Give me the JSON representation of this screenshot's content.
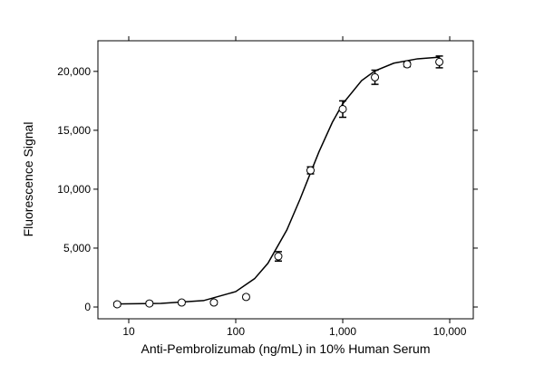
{
  "chart_data": {
    "type": "scatter",
    "x_label": "Anti-Pembrolizumab (ng/mL) in 10% Human Serum",
    "y_label": "Fluorescence Signal",
    "x_scale": "log",
    "xlim": [
      5.15,
      16600
    ],
    "ylim": [
      -1000,
      22600
    ],
    "xticks": [
      10,
      100,
      {
        "value": 1000,
        "label": "1,000"
      },
      {
        "value": 10000,
        "label": "10,000"
      }
    ],
    "yticks": [
      0,
      {
        "value": 5000,
        "label": "5,000"
      },
      {
        "value": 10000,
        "label": "10,000"
      },
      {
        "value": 15000,
        "label": "15,000"
      },
      {
        "value": 20000,
        "label": "20,000"
      }
    ],
    "color": "#000000",
    "points": {
      "x": [
        7.8,
        15.6,
        31.25,
        62.5,
        125,
        250,
        500,
        1000,
        2000,
        4000,
        8000
      ],
      "values": [
        230,
        300,
        380,
        380,
        850,
        4300,
        11600,
        16800,
        19500,
        20600,
        20800
      ],
      "errors": [
        150,
        150,
        150,
        150,
        150,
        400,
        300,
        700,
        600,
        200,
        500
      ]
    },
    "fit": {
      "x": [
        7.8,
        20,
        50,
        100,
        150,
        200,
        300,
        400,
        500,
        600,
        800,
        1000,
        1500,
        2000,
        3000,
        5000,
        8000
      ],
      "values": [
        259,
        302,
        544,
        1308,
        2407,
        3718,
        6534,
        9177,
        11390,
        13180,
        15680,
        17250,
        19214,
        20038,
        20695,
        21067,
        21203
      ]
    }
  }
}
